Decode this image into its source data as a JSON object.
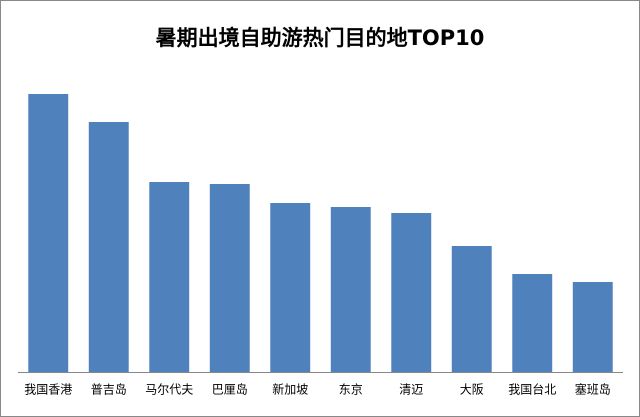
{
  "chart_data": {
    "type": "bar",
    "title": "暑期出境自助游热门目的地TOP10",
    "categories": [
      "我国香港",
      "普吉岛",
      "马尔代夫",
      "巴厘岛",
      "新加坡",
      "东京",
      "清迈",
      "大阪",
      "我国台北",
      "塞班岛"
    ],
    "values": [
      278,
      250,
      190,
      188,
      169,
      165,
      159,
      126,
      98,
      90
    ],
    "color": "#4f81bd",
    "ylim": [
      0,
      300
    ]
  }
}
